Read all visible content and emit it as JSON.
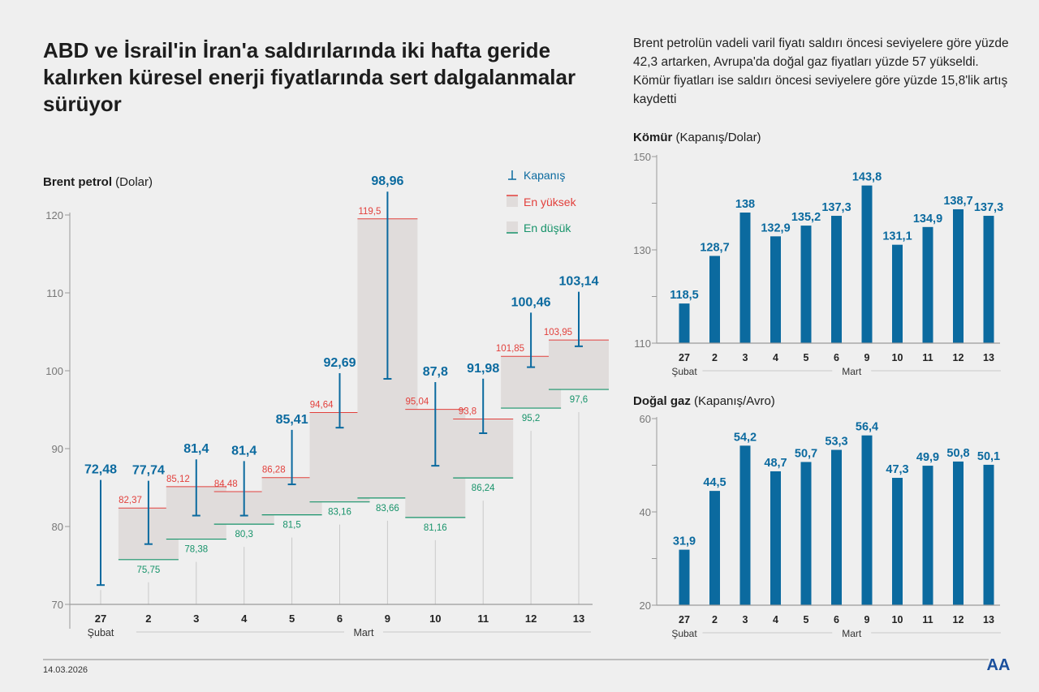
{
  "header": {
    "title": "ABD ve İsrail'in İran'a saldırılarında iki hafta geride kalırken küresel enerji fiyatlarında sert dalgalanmalar sürüyor",
    "description": "Brent petrolün vadeli varil fiyatı saldırı öncesi seviyelere göre yüzde 42,3 artarken, Avrupa'da doğal gaz fiyatları yüzde 57 yükseldi. Kömür fiyatları ise saldırı öncesi seviyelere göre yüzde 15,8'lik artış kaydetti"
  },
  "footer": {
    "date": "14.03.2026",
    "logo": "AA"
  },
  "colors": {
    "close": "#0b6a9f",
    "high": "#e2403c",
    "low": "#17936a",
    "range": "#e0dcdb",
    "axis": "#9a9a9a"
  },
  "chart_data": [
    {
      "type": "range-bar",
      "title_bold": "Brent petrol",
      "title_rest": " (Dolar)",
      "categories": [
        "27",
        "2",
        "3",
        "4",
        "5",
        "6",
        "9",
        "10",
        "11",
        "12",
        "13"
      ],
      "groups": [
        {
          "label": "Şubat",
          "span": [
            0,
            0
          ]
        },
        {
          "label": "Mart",
          "span": [
            1,
            10
          ]
        }
      ],
      "ylim": [
        70,
        120
      ],
      "yticks": [
        70,
        80,
        90,
        100,
        110,
        120
      ],
      "legend": {
        "close": "Kapanış",
        "high": "En yüksek",
        "low": "En düşük",
        "placement": "top-right"
      },
      "series": [
        {
          "name": "Kapanış",
          "values": [
            72.48,
            77.74,
            81.4,
            81.4,
            85.41,
            92.69,
            98.96,
            87.8,
            91.98,
            100.46,
            103.14
          ],
          "labels": [
            "72,48",
            "77,74",
            "81,4",
            "81,4",
            "85,41",
            "92,69",
            "98,96",
            "87,8",
            "91,98",
            "100,46",
            "103,14"
          ]
        },
        {
          "name": "En yüksek",
          "values": [
            null,
            82.37,
            85.12,
            84.48,
            86.28,
            94.64,
            119.5,
            95.04,
            93.8,
            101.85,
            103.95
          ],
          "labels": [
            "",
            "82,37",
            "85,12",
            "84,48",
            "86,28",
            "94,64",
            "119,5",
            "95,04",
            "93,8",
            "101,85",
            "103,95"
          ]
        },
        {
          "name": "En düşük",
          "values": [
            null,
            75.75,
            78.38,
            80.3,
            81.5,
            83.16,
            83.66,
            81.16,
            86.24,
            95.2,
            97.6
          ],
          "labels": [
            "",
            "75,75",
            "78,38",
            "80,3",
            "81,5",
            "83,16",
            "83,66",
            "81,16",
            "86,24",
            "95,2",
            "97,6"
          ]
        }
      ]
    },
    {
      "type": "bar",
      "title_bold": "Kömür",
      "title_rest": " (Kapanış/Dolar)",
      "categories": [
        "27",
        "2",
        "3",
        "4",
        "5",
        "6",
        "9",
        "10",
        "11",
        "12",
        "13"
      ],
      "groups": [
        {
          "label": "Şubat",
          "span": [
            0,
            0
          ]
        },
        {
          "label": "Mart",
          "span": [
            1,
            10
          ]
        }
      ],
      "ylim": [
        110,
        150
      ],
      "yticks": [
        110,
        130,
        150
      ],
      "values": [
        118.5,
        128.7,
        138,
        132.9,
        135.2,
        137.3,
        143.8,
        131.1,
        134.9,
        138.7,
        137.3
      ],
      "labels": [
        "118,5",
        "128,7",
        "138",
        "132,9",
        "135,2",
        "137,3",
        "143,8",
        "131,1",
        "134,9",
        "138,7",
        "137,3"
      ]
    },
    {
      "type": "bar",
      "title_bold": "Doğal gaz",
      "title_rest": " (Kapanış/Avro)",
      "categories": [
        "27",
        "2",
        "3",
        "4",
        "5",
        "6",
        "9",
        "10",
        "11",
        "12",
        "13"
      ],
      "groups": [
        {
          "label": "Şubat",
          "span": [
            0,
            0
          ]
        },
        {
          "label": "Mart",
          "span": [
            1,
            10
          ]
        }
      ],
      "ylim": [
        20,
        60
      ],
      "yticks": [
        20,
        40,
        60
      ],
      "values": [
        31.9,
        44.5,
        54.2,
        48.7,
        50.7,
        53.3,
        56.4,
        47.3,
        49.9,
        50.8,
        50.1
      ],
      "labels": [
        "31,9",
        "44,5",
        "54,2",
        "48,7",
        "50,7",
        "53,3",
        "56,4",
        "47,3",
        "49,9",
        "50,8",
        "50,1"
      ]
    }
  ]
}
